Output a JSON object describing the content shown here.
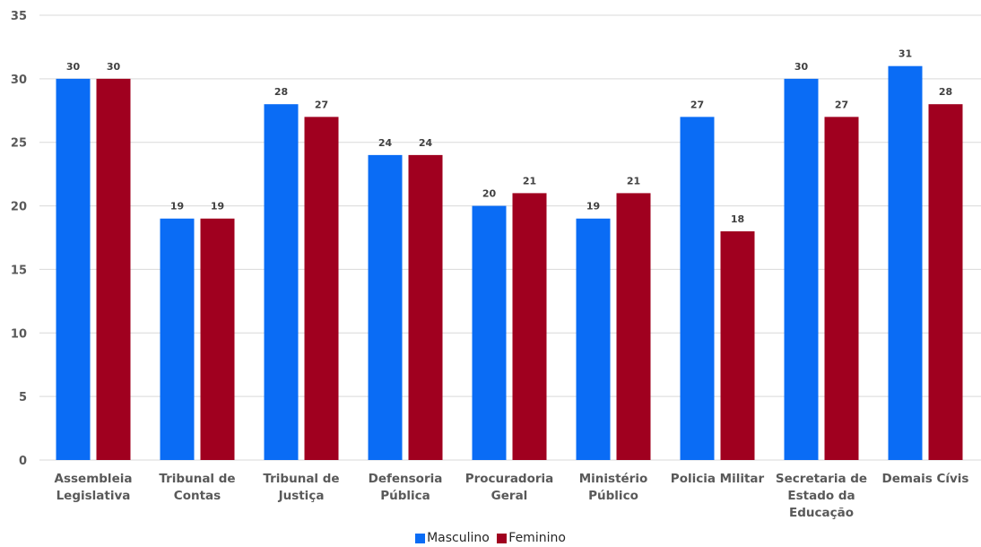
{
  "chart_data": {
    "type": "bar",
    "categories": [
      [
        "Assembleia",
        "Legislativa"
      ],
      [
        "Tribunal de",
        "Contas"
      ],
      [
        "Tribunal de",
        "Justiça"
      ],
      [
        "Defensoria",
        "Pública"
      ],
      [
        "Procuradoria",
        "Geral"
      ],
      [
        "Ministério",
        "Público"
      ],
      [
        "Policia Militar"
      ],
      [
        "Secretaria de",
        "Estado da",
        "Educação"
      ],
      [
        "Demais Cívis"
      ]
    ],
    "series": [
      {
        "name": "Masculino",
        "color": "#0A6CF5",
        "values": [
          30,
          19,
          28,
          24,
          20,
          19,
          27,
          30,
          31
        ]
      },
      {
        "name": "Feminino",
        "color": "#A0001F",
        "values": [
          30,
          19,
          27,
          24,
          21,
          21,
          18,
          27,
          28
        ]
      }
    ],
    "ylim": [
      0,
      35
    ],
    "yticks": [
      0,
      5,
      10,
      15,
      20,
      25,
      30,
      35
    ],
    "grid": true,
    "legend_position": "bottom"
  }
}
